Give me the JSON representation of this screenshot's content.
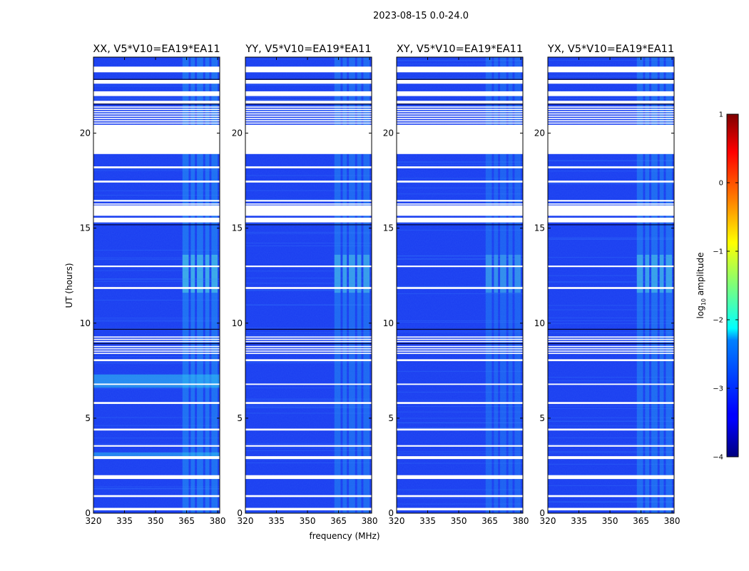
{
  "chart_data": {
    "type": "heatmap",
    "title": "2023-08-15 0.0-24.0",
    "xlabel": "frequency (MHz)",
    "ylabel": "UT (hours)",
    "xlim": [
      320,
      381
    ],
    "ylim": [
      0,
      24
    ],
    "x_ticks": [
      "320",
      "335",
      "350",
      "365",
      "380"
    ],
    "x_tick_values": [
      320,
      335,
      350,
      365,
      380
    ],
    "y_ticks": [
      "0",
      "5",
      "10",
      "15",
      "20"
    ],
    "y_tick_values": [
      0,
      5,
      10,
      15,
      20
    ],
    "colormap": "jet",
    "panels": [
      {
        "title": "XX, V5*V10=EA19*EA11",
        "rfi_level": 1.0,
        "base_level": 0.22
      },
      {
        "title": "YY, V5*V10=EA19*EA11",
        "rfi_level": 0.85,
        "base_level": 0.2
      },
      {
        "title": "XY, V5*V10=EA19*EA11",
        "rfi_level": 0.7,
        "base_level": 0.19
      },
      {
        "title": "YX, V5*V10=EA19*EA11",
        "rfi_level": 0.9,
        "base_level": 0.21
      }
    ],
    "flagged_ut_ranges": [
      [
        0.15,
        0.28
      ],
      [
        0.85,
        0.95
      ],
      [
        1.8,
        2.0
      ],
      [
        2.85,
        3.0
      ],
      [
        3.5,
        3.58
      ],
      [
        4.35,
        4.45
      ],
      [
        5.75,
        5.85
      ],
      [
        6.75,
        6.82
      ],
      [
        8.0,
        8.1
      ],
      [
        11.8,
        11.9
      ],
      [
        12.95,
        13.03
      ],
      [
        15.3,
        15.55
      ],
      [
        15.65,
        16.2
      ],
      [
        16.4,
        16.48
      ],
      [
        17.4,
        17.5
      ],
      [
        18.15,
        18.25
      ],
      [
        18.9,
        20.4
      ],
      [
        21.55,
        21.7
      ],
      [
        21.95,
        22.2
      ],
      [
        22.6,
        22.8
      ],
      [
        23.2,
        23.5
      ]
    ],
    "dense_flag_ut_ranges": [
      [
        20.4,
        21.4
      ],
      [
        8.4,
        8.8
      ],
      [
        9.0,
        9.3
      ],
      [
        15.9,
        16.3
      ]
    ],
    "rfi_bands_mhz": [
      [
        363,
        366
      ],
      [
        367,
        369
      ],
      [
        370,
        373
      ],
      [
        374,
        376
      ],
      [
        377,
        380
      ]
    ],
    "colorbar": {
      "label_prefix": "log",
      "label_sub": "10",
      "label_suffix": " amplitude",
      "min": -4,
      "max": 1,
      "ticks": [
        "−4",
        "−3",
        "−2",
        "−1",
        "0",
        "1"
      ],
      "tick_values": [
        -4,
        -3,
        -2,
        -1,
        0,
        1
      ]
    }
  }
}
